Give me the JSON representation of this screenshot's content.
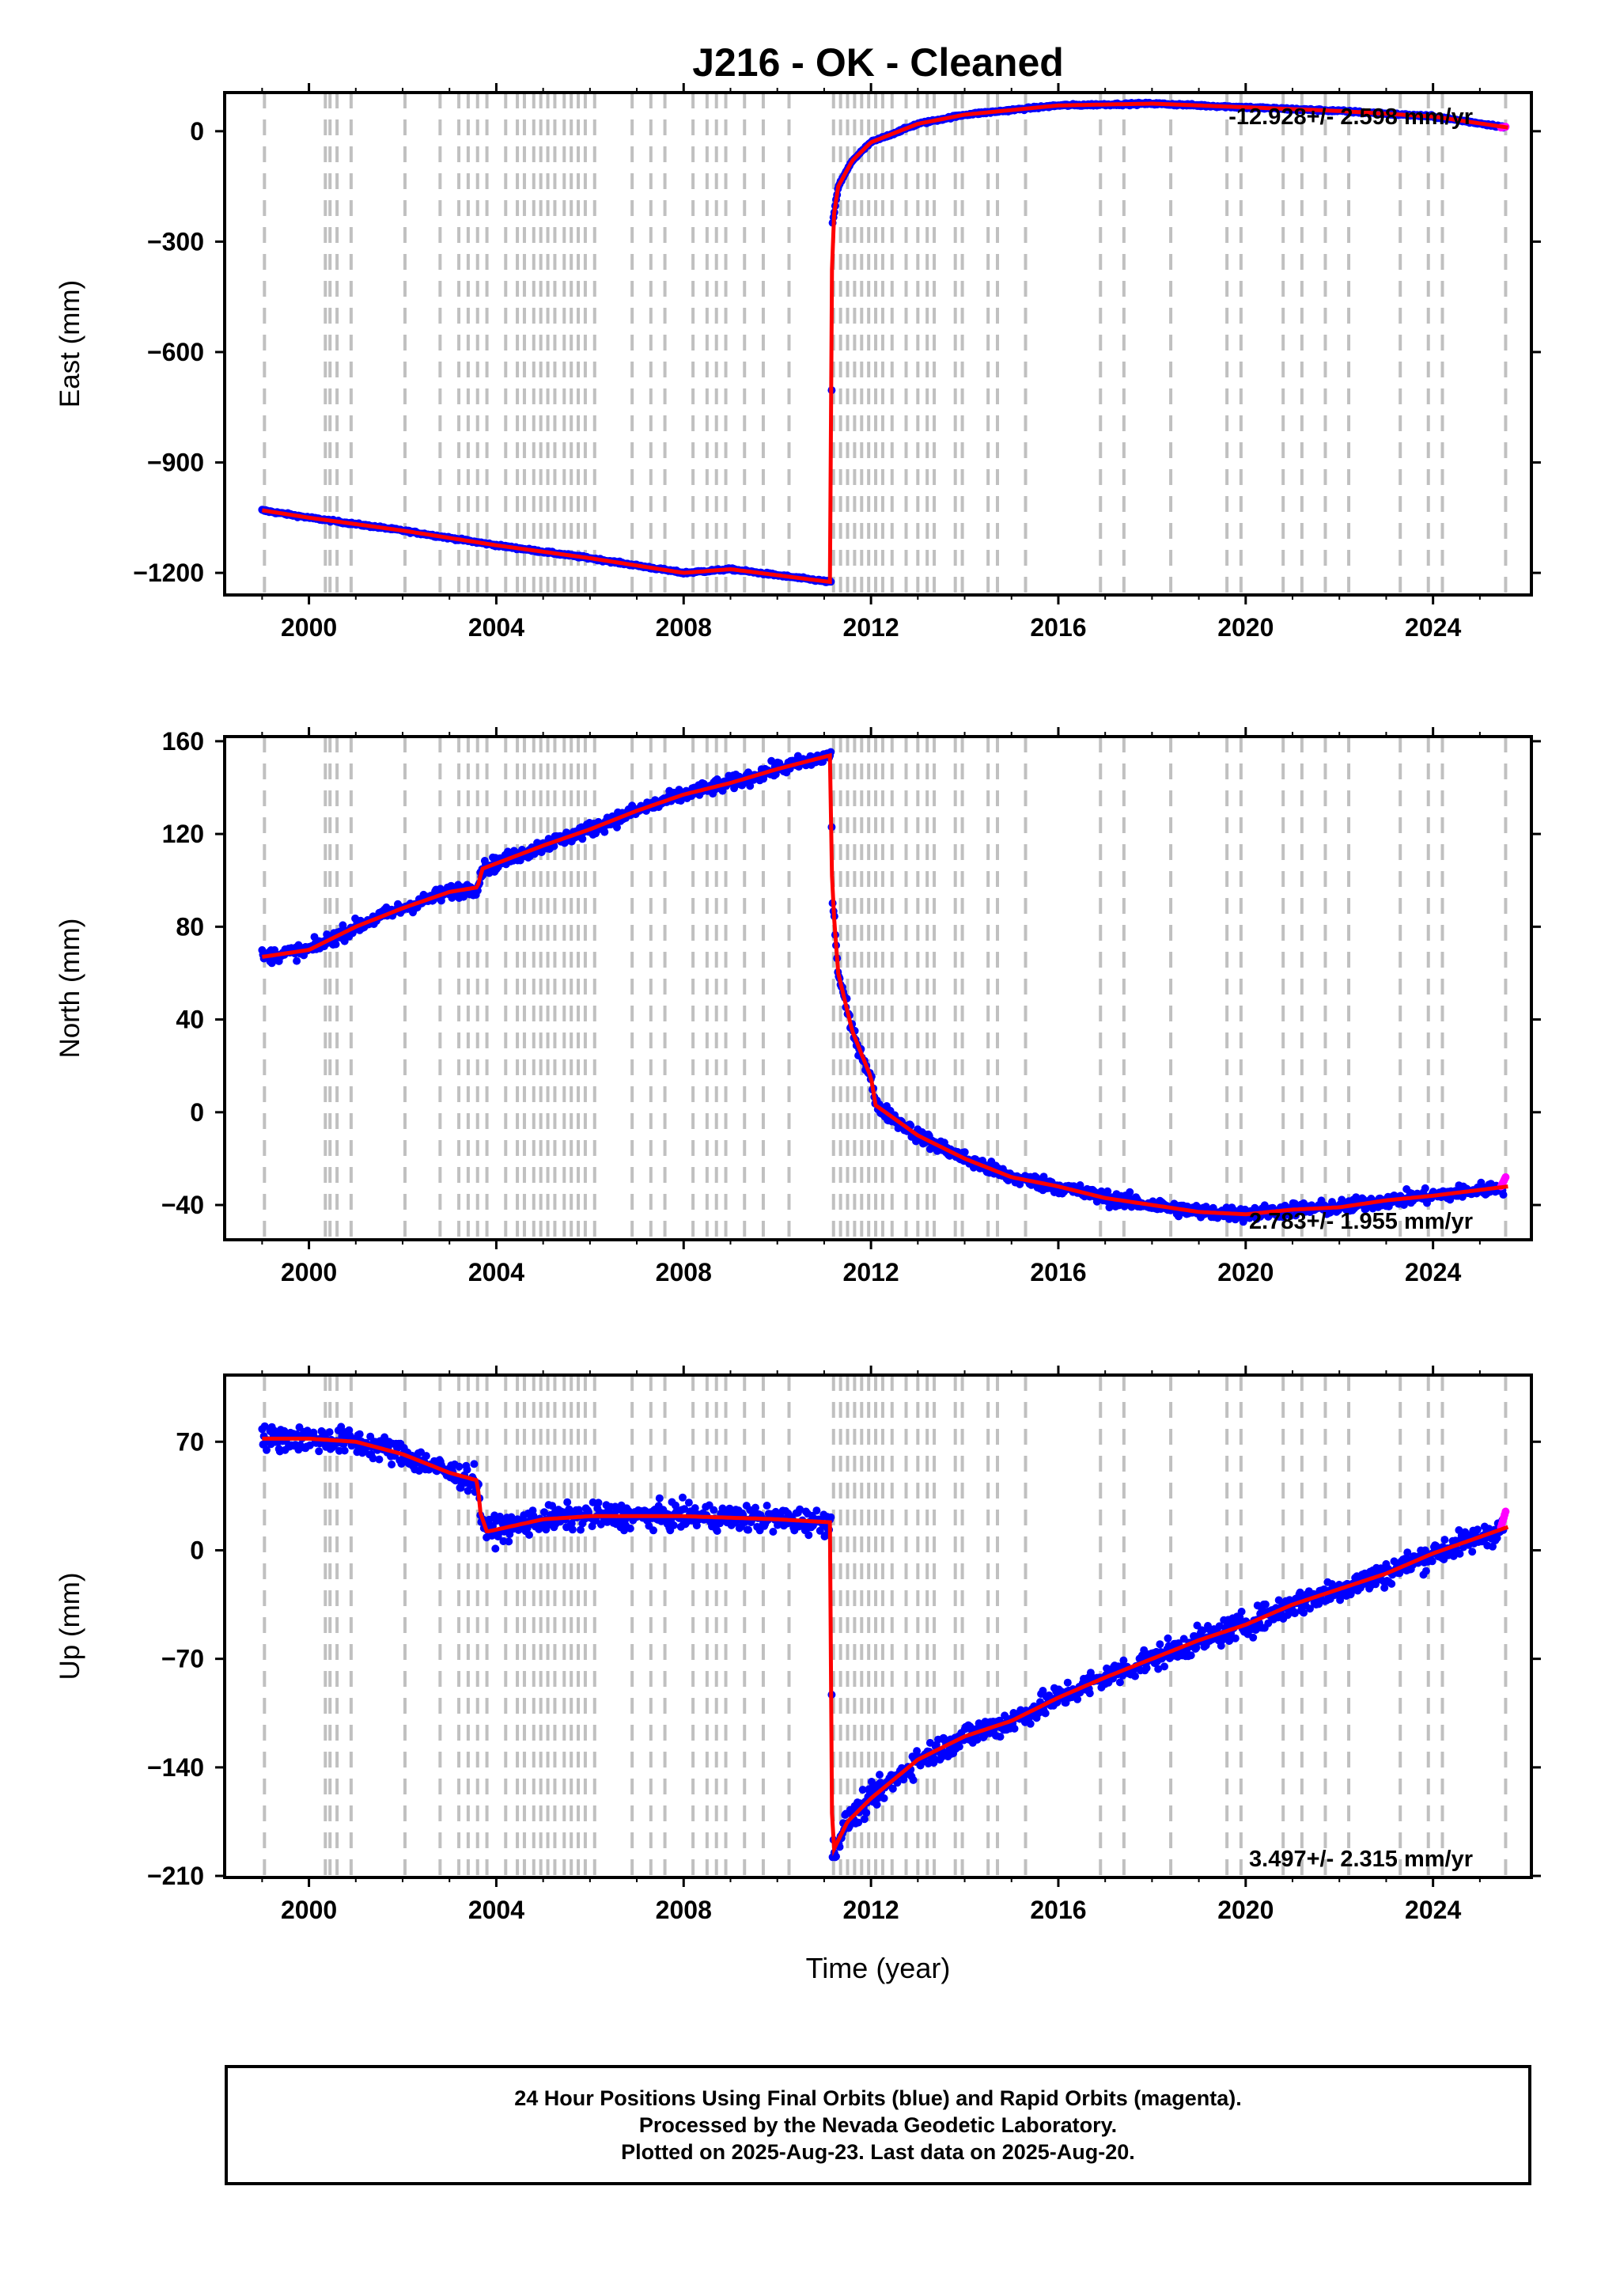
{
  "chart_data": {
    "type": "scatter",
    "title": "J216  - OK - Cleaned",
    "xlabel": "Time (year)",
    "xlim": [
      1998.2,
      2026.1
    ],
    "xticks": [
      2000,
      2004,
      2008,
      2012,
      2016,
      2020,
      2024
    ],
    "vlines": [
      1999.05,
      2000.35,
      2000.45,
      2000.6,
      2000.9,
      2002.05,
      2002.8,
      2003.2,
      2003.4,
      2003.6,
      2003.8,
      2004.2,
      2004.45,
      2004.6,
      2004.8,
      2004.95,
      2005.1,
      2005.25,
      2005.45,
      2005.6,
      2005.75,
      2005.9,
      2006.1,
      2006.9,
      2007.3,
      2007.6,
      2008.2,
      2008.5,
      2008.7,
      2008.9,
      2009.3,
      2009.7,
      2010.25,
      2011.2,
      2011.35,
      2011.5,
      2011.65,
      2011.8,
      2011.95,
      2012.1,
      2012.25,
      2012.45,
      2012.75,
      2013.0,
      2013.2,
      2013.35,
      2013.8,
      2013.95,
      2014.5,
      2014.7,
      2015.3,
      2016.9,
      2017.4,
      2018.4,
      2019.6,
      2019.9,
      2020.8,
      2021.2,
      2021.7,
      2022.2,
      2023.3,
      2023.9,
      2024.2,
      2025.55
    ],
    "panels": [
      {
        "ylabel": "East (mm)",
        "ylim": [
          -1260,
          105
        ],
        "yticks": [
          0,
          -300,
          -600,
          -900,
          -1200
        ],
        "rate_label": "-12.928+/- 2.598 mm/yr",
        "rate_position": "top-right",
        "noise": 3,
        "model": [
          [
            1999,
            -1030
          ],
          [
            2000,
            -1050
          ],
          [
            2002,
            -1085
          ],
          [
            2004,
            -1125
          ],
          [
            2006,
            -1160
          ],
          [
            2008,
            -1200
          ],
          [
            2009,
            -1190
          ],
          [
            2011.15,
            -1225
          ],
          [
            2011.17,
            -260
          ],
          [
            2011.3,
            -150
          ],
          [
            2011.6,
            -80
          ],
          [
            2012,
            -30
          ],
          [
            2013,
            20
          ],
          [
            2014,
            45
          ],
          [
            2016,
            70
          ],
          [
            2018,
            75
          ],
          [
            2020,
            65
          ],
          [
            2022,
            55
          ],
          [
            2024,
            40
          ],
          [
            2025.6,
            10
          ]
        ],
        "rapid_last": [
          25.55,
          12
        ]
      },
      {
        "ylabel": "North (mm)",
        "ylim": [
          -55,
          162
        ],
        "yticks": [
          160,
          120,
          80,
          40,
          0,
          -40
        ],
        "rate_label": "2.783+/- 1.955 mm/yr",
        "rate_position": "bottom-right",
        "noise": 3,
        "model": [
          [
            1999,
            67
          ],
          [
            2000,
            70
          ],
          [
            2001,
            80
          ],
          [
            2002,
            88
          ],
          [
            2003,
            95
          ],
          [
            2003.6,
            97
          ],
          [
            2003.7,
            105
          ],
          [
            2005,
            115
          ],
          [
            2006,
            122
          ],
          [
            2007,
            130
          ],
          [
            2008,
            137
          ],
          [
            2009,
            142
          ],
          [
            2010,
            148
          ],
          [
            2011.15,
            154
          ],
          [
            2011.17,
            95
          ],
          [
            2011.3,
            60
          ],
          [
            2011.6,
            35
          ],
          [
            2012,
            15
          ],
          [
            2012.1,
            3
          ],
          [
            2013,
            -10
          ],
          [
            2014,
            -20
          ],
          [
            2015,
            -28
          ],
          [
            2016,
            -32
          ],
          [
            2017,
            -37
          ],
          [
            2018,
            -40
          ],
          [
            2019,
            -43
          ],
          [
            2020,
            -44
          ],
          [
            2021,
            -42
          ],
          [
            2022,
            -41
          ],
          [
            2023,
            -38
          ],
          [
            2024,
            -36
          ],
          [
            2025.6,
            -32
          ]
        ],
        "rapid_last": [
          25.55,
          -28
        ]
      },
      {
        "ylabel": "Up (mm)",
        "ylim": [
          -211,
          113
        ],
        "yticks": [
          70,
          0,
          -70,
          -140,
          -210
        ],
        "rate_label": "3.497+/- 2.315 mm/yr",
        "rate_position": "bottom-right",
        "noise": 8,
        "model": [
          [
            1999,
            72
          ],
          [
            2000,
            72
          ],
          [
            2001,
            70
          ],
          [
            2002,
            62
          ],
          [
            2003,
            50
          ],
          [
            2003.6,
            45
          ],
          [
            2003.65,
            25
          ],
          [
            2003.8,
            12
          ],
          [
            2005,
            20
          ],
          [
            2006,
            22
          ],
          [
            2008,
            22
          ],
          [
            2010,
            20
          ],
          [
            2011.15,
            18
          ],
          [
            2011.17,
            -195
          ],
          [
            2011.5,
            -175
          ],
          [
            2012,
            -160
          ],
          [
            2013,
            -135
          ],
          [
            2014,
            -120
          ],
          [
            2015,
            -110
          ],
          [
            2016,
            -95
          ],
          [
            2017,
            -82
          ],
          [
            2018,
            -70
          ],
          [
            2019,
            -58
          ],
          [
            2020,
            -48
          ],
          [
            2021,
            -35
          ],
          [
            2022,
            -25
          ],
          [
            2023,
            -15
          ],
          [
            2024,
            -2
          ],
          [
            2025.6,
            15
          ]
        ],
        "rapid_last": [
          25.55,
          25
        ]
      }
    ]
  },
  "footer": {
    "line1": "24 Hour Positions Using Final Orbits (blue) and Rapid Orbits (magenta).",
    "line2": "Processed by the Nevada Geodetic Laboratory.",
    "line3": "Plotted on 2025-Aug-23. Last data on 2025-Aug-20."
  },
  "colors": {
    "final_orbits": "#0000ff",
    "rapid_orbits": "#ff00ff",
    "model": "#ff0000",
    "vlines": "#c0c0c0"
  }
}
